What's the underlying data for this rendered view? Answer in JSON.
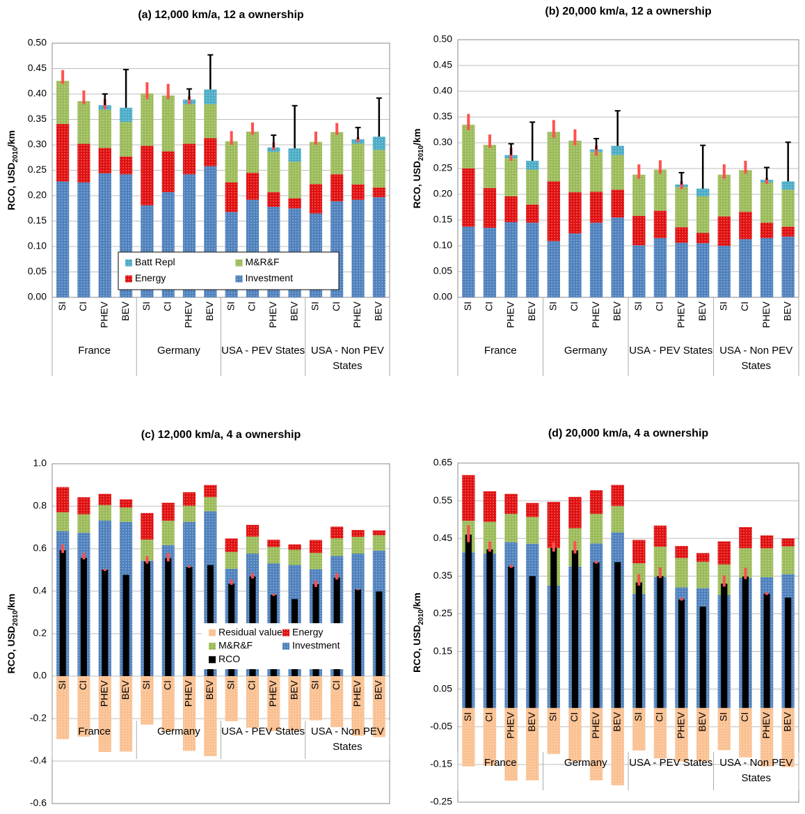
{
  "chart_data": [
    {
      "type": "bar",
      "title": "(a) 12,000 km/a, 12 a ownership",
      "ylabel": [
        "RCO, USD",
        "2010",
        "/km"
      ],
      "categories": [
        "SI",
        "CI",
        "PHEV",
        "BEV",
        "SI",
        "CI",
        "PHEV",
        "BEV",
        "SI",
        "CI",
        "PHEV",
        "BEV",
        "SI",
        "CI",
        "PHEV",
        "BEV"
      ],
      "groups": [
        "France",
        "Germany",
        "USA - PEV States",
        "USA - Non PEV States"
      ],
      "series": [
        {
          "name": "Batt Repl",
          "color": "#4bacc6",
          "values": [
            0,
            0,
            0.009,
            0.028,
            0,
            0,
            0.009,
            0.029,
            0,
            0,
            0.009,
            0.026,
            0,
            0,
            0.009,
            0.026
          ]
        },
        {
          "name": "M&R&F",
          "color": "#9bbb59",
          "values": [
            0.085,
            0.084,
            0.075,
            0.068,
            0.103,
            0.11,
            0.078,
            0.067,
            0.081,
            0.081,
            0.079,
            0.072,
            0.083,
            0.083,
            0.08,
            0.074
          ]
        },
        {
          "name": "Energy",
          "color": "#e01010",
          "values": [
            0.113,
            0.076,
            0.05,
            0.035,
            0.117,
            0.08,
            0.06,
            0.055,
            0.058,
            0.053,
            0.029,
            0.02,
            0.058,
            0.053,
            0.03,
            0.019
          ]
        },
        {
          "name": "Investment",
          "color": "#4f81bd",
          "values": [
            0.228,
            0.226,
            0.244,
            0.242,
            0.181,
            0.207,
            0.242,
            0.258,
            0.168,
            0.192,
            0.178,
            0.175,
            0.165,
            0.189,
            0.192,
            0.197
          ]
        }
      ],
      "error_bars": [
        {
          "color": "#ff5050",
          "low": [
            0.42,
            0.38,
            0.37,
            null,
            0.39,
            0.39,
            0.38,
            null,
            0.3,
            0.32,
            0.29,
            null,
            0.3,
            0.32,
            0.305,
            null
          ],
          "high": [
            0.447,
            0.407,
            0.39,
            null,
            0.423,
            0.42,
            0.395,
            null,
            0.327,
            0.344,
            0.305,
            null,
            0.326,
            0.343,
            0.315,
            null
          ]
        },
        {
          "color": "#000000",
          "low": [
            null,
            null,
            0.378,
            0.373,
            null,
            null,
            0.389,
            0.409,
            null,
            null,
            0.295,
            0.293,
            null,
            null,
            0.311,
            0.316
          ],
          "high": [
            null,
            null,
            0.4,
            0.448,
            null,
            null,
            0.41,
            0.477,
            null,
            null,
            0.319,
            0.377,
            null,
            null,
            0.334,
            0.392
          ]
        }
      ],
      "ylim": [
        0,
        0.5
      ],
      "yticks": [
        {
          "value": 0,
          "label": "0.00"
        },
        0.05,
        {
          "value": 0.1,
          "label": "0.10"
        },
        0.15,
        {
          "value": 0.2,
          "label": "0.20"
        },
        0.25,
        {
          "value": 0.3,
          "label": "0.30"
        },
        0.35,
        {
          "value": 0.4,
          "label": "0.40"
        },
        0.45,
        {
          "value": 0.5,
          "label": "0.50"
        }
      ],
      "grid": true,
      "legend": "bottom"
    },
    {
      "type": "bar",
      "title": "(b) 20,000 km/a, 12 a ownership",
      "ylabel": [
        "RCO, USD",
        "2010",
        "/km"
      ],
      "categories": [
        "SI",
        "CI",
        "PHEV",
        "BEV",
        "SI",
        "CI",
        "PHEV",
        "BEV",
        "SI",
        "CI",
        "PHEV",
        "BEV",
        "SI",
        "CI",
        "PHEV",
        "BEV"
      ],
      "groups": [
        "France",
        "Germany",
        "USA - PEV States",
        "USA - Non PEV States"
      ],
      "series": [
        {
          "name": "Batt Repl",
          "color": "#4bacc6",
          "values": [
            0,
            0,
            0.006,
            0.017,
            0,
            0,
            0.005,
            0.018,
            0,
            0,
            0.005,
            0.015,
            0,
            0,
            0.005,
            0.016
          ]
        },
        {
          "name": "M&R&F",
          "color": "#9bbb59",
          "values": [
            0.085,
            0.084,
            0.074,
            0.068,
            0.096,
            0.1,
            0.077,
            0.067,
            0.08,
            0.08,
            0.078,
            0.071,
            0.081,
            0.081,
            0.078,
            0.072
          ]
        },
        {
          "name": "Energy",
          "color": "#e01010",
          "values": [
            0.113,
            0.077,
            0.05,
            0.035,
            0.116,
            0.08,
            0.06,
            0.054,
            0.057,
            0.053,
            0.03,
            0.02,
            0.057,
            0.053,
            0.03,
            0.019
          ]
        },
        {
          "name": "Investment",
          "color": "#4f81bd",
          "values": [
            0.137,
            0.135,
            0.146,
            0.145,
            0.109,
            0.124,
            0.145,
            0.155,
            0.101,
            0.115,
            0.106,
            0.105,
            0.1,
            0.113,
            0.115,
            0.118
          ]
        }
      ],
      "error_bars": [
        {
          "color": "#ff5050",
          "low": [
            0.325,
            0.29,
            0.265,
            null,
            0.31,
            0.295,
            0.275,
            null,
            0.23,
            0.24,
            0.21,
            null,
            0.23,
            0.24,
            0.22,
            null
          ],
          "high": [
            0.356,
            0.316,
            0.29,
            null,
            0.344,
            0.326,
            0.295,
            null,
            0.258,
            0.266,
            0.225,
            null,
            0.258,
            0.265,
            0.232,
            null
          ]
        },
        {
          "color": "#000000",
          "low": [
            null,
            null,
            0.276,
            0.265,
            null,
            null,
            0.287,
            0.294,
            null,
            null,
            0.219,
            0.211,
            null,
            null,
            0.228,
            0.225
          ],
          "high": [
            null,
            null,
            0.298,
            0.34,
            null,
            null,
            0.308,
            0.362,
            null,
            null,
            0.242,
            0.295,
            null,
            null,
            0.252,
            0.301
          ]
        }
      ],
      "ylim": [
        0,
        0.5
      ],
      "yticks": [
        {
          "value": 0,
          "label": "0.00"
        },
        0.05,
        {
          "value": 0.1,
          "label": "0.10"
        },
        0.15,
        {
          "value": 0.2,
          "label": "0.20"
        },
        0.25,
        {
          "value": 0.3,
          "label": "0.30"
        },
        0.35,
        {
          "value": 0.4,
          "label": "0.40"
        },
        0.45,
        {
          "value": 0.5,
          "label": "0.50"
        }
      ],
      "grid": true
    },
    {
      "type": "bar",
      "title": "(c) 12,000 km/a, 4 a ownership",
      "ylabel": [
        "RCO, USD",
        "2010",
        "/km"
      ],
      "categories": [
        "SI",
        "CI",
        "PHEV",
        "BEV",
        "SI",
        "CI",
        "PHEV",
        "BEV",
        "SI",
        "CI",
        "PHEV",
        "BEV",
        "SI",
        "CI",
        "PHEV",
        "BEV"
      ],
      "groups": [
        "France",
        "Germany",
        "USA - PEV States",
        "USA - Non PEV States"
      ],
      "series": [
        {
          "name": "Residual value",
          "color": "#fac090",
          "values": [
            -0.297,
            -0.285,
            -0.357,
            -0.355,
            -0.228,
            -0.26,
            -0.352,
            -0.377,
            -0.212,
            -0.243,
            -0.259,
            -0.257,
            -0.208,
            -0.24,
            -0.28,
            -0.287
          ]
        },
        {
          "name": "Energy",
          "color": "#e01010",
          "values": [
            0.118,
            0.08,
            0.053,
            0.038,
            0.125,
            0.084,
            0.064,
            0.057,
            0.063,
            0.055,
            0.034,
            0.025,
            0.061,
            0.055,
            0.032,
            0.022
          ]
        },
        {
          "name": "M&R&F",
          "color": "#9bbb59",
          "values": [
            0.089,
            0.087,
            0.072,
            0.068,
            0.1,
            0.115,
            0.076,
            0.067,
            0.08,
            0.08,
            0.077,
            0.072,
            0.077,
            0.083,
            0.079,
            0.073
          ]
        },
        {
          "name": "Investment",
          "color": "#4f81bd",
          "values": [
            0.683,
            0.675,
            0.733,
            0.726,
            0.543,
            0.617,
            0.726,
            0.776,
            0.505,
            0.577,
            0.531,
            0.523,
            0.503,
            0.566,
            0.577,
            0.591
          ]
        },
        {
          "name": "RCO",
          "color": "#000000",
          "overlay": true,
          "values": [
            0.593,
            0.557,
            0.501,
            0.477,
            0.54,
            0.556,
            0.514,
            0.523,
            0.436,
            0.469,
            0.383,
            0.363,
            0.433,
            0.464,
            0.408,
            0.399
          ]
        }
      ],
      "error_bars": [
        {
          "color": "#ff5050",
          "low": [
            0.58,
            0.55,
            0.495,
            null,
            0.53,
            0.54,
            0.51,
            null,
            0.43,
            0.46,
            0.378,
            null,
            0.42,
            0.455,
            0.405,
            null
          ],
          "high": [
            0.62,
            0.58,
            0.505,
            null,
            0.565,
            0.58,
            0.52,
            null,
            0.455,
            0.485,
            0.388,
            null,
            0.45,
            0.485,
            0.41,
            null
          ]
        }
      ],
      "ylim": [
        -0.6,
        1.0
      ],
      "yticks": [
        -0.6,
        -0.4,
        -0.2,
        {
          "value": 0,
          "label": "0.0"
        },
        0.2,
        0.4,
        0.6,
        0.8,
        {
          "value": 1,
          "label": "1.0"
        }
      ],
      "grid": true,
      "legend": "right"
    },
    {
      "type": "bar",
      "title": "(d) 20,000 km/a, 4 a ownership",
      "ylabel": [
        "RCO, USD",
        "2010",
        "/km"
      ],
      "categories": [
        "SI",
        "CI",
        "PHEV",
        "BEV",
        "SI",
        "CI",
        "PHEV",
        "BEV",
        "SI",
        "CI",
        "PHEV",
        "BEV",
        "SI",
        "CI",
        "PHEV",
        "BEV"
      ],
      "groups": [
        "France",
        "Germany",
        "USA - PEV States",
        "USA - Non PEV States"
      ],
      "series": [
        {
          "name": "Residual value",
          "color": "#fac090",
          "values": [
            -0.155,
            -0.153,
            -0.193,
            -0.192,
            -0.122,
            -0.142,
            -0.192,
            -0.205,
            -0.113,
            -0.134,
            -0.142,
            -0.142,
            -0.112,
            -0.131,
            -0.155,
            -0.157
          ]
        },
        {
          "name": "Energy",
          "color": "#e01010",
          "values": [
            0.121,
            0.081,
            0.053,
            0.037,
            0.122,
            0.083,
            0.063,
            0.056,
            0.062,
            0.056,
            0.032,
            0.023,
            0.061,
            0.056,
            0.034,
            0.021
          ]
        },
        {
          "name": "M&R&F",
          "color": "#9bbb59",
          "values": [
            0.084,
            0.084,
            0.075,
            0.071,
            0.1,
            0.102,
            0.078,
            0.07,
            0.081,
            0.08,
            0.078,
            0.07,
            0.081,
            0.079,
            0.077,
            0.074
          ]
        },
        {
          "name": "Investment",
          "color": "#4f81bd",
          "values": [
            0.413,
            0.41,
            0.44,
            0.436,
            0.325,
            0.375,
            0.437,
            0.466,
            0.303,
            0.348,
            0.32,
            0.318,
            0.3,
            0.345,
            0.347,
            0.355
          ]
        },
        {
          "name": "RCO",
          "color": "#000000",
          "overlay": true,
          "values": [
            0.46,
            0.421,
            0.375,
            0.35,
            0.425,
            0.418,
            0.386,
            0.387,
            0.333,
            0.35,
            0.288,
            0.269,
            0.33,
            0.349,
            0.303,
            0.293
          ]
        }
      ],
      "error_bars": [
        {
          "color": "#ff5050",
          "low": [
            0.44,
            0.415,
            0.372,
            null,
            0.415,
            0.41,
            0.383,
            null,
            0.325,
            0.345,
            0.285,
            null,
            0.322,
            0.342,
            0.3,
            null
          ],
          "high": [
            0.485,
            0.442,
            0.38,
            null,
            0.44,
            0.443,
            0.39,
            null,
            0.355,
            0.373,
            0.293,
            null,
            0.352,
            0.372,
            0.307,
            null
          ]
        }
      ],
      "ylim": [
        -0.25,
        0.65
      ],
      "yticks": [
        -0.25,
        -0.15,
        -0.05,
        0.05,
        0.15,
        0.25,
        0.35,
        0.45,
        0.55,
        0.65
      ],
      "grid": true
    }
  ]
}
